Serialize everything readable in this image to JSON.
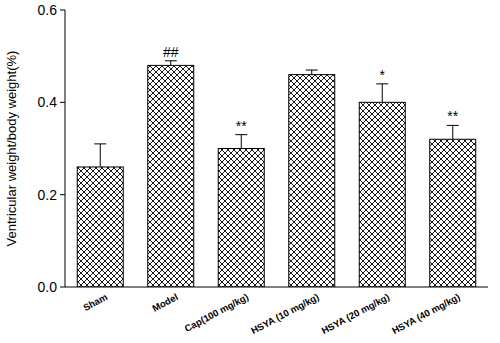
{
  "chart_data": {
    "type": "bar",
    "y_label": "Ventricular weight/body weight(%)",
    "categories": [
      "Sham",
      "Model",
      "Cap(100 mg/kg)",
      "HSYA (10 mg/kg)",
      "HSYA (20 mg/kg)",
      "HSYA (40 mg/kg)"
    ],
    "values": [
      0.26,
      0.48,
      0.3,
      0.46,
      0.4,
      0.32
    ],
    "errors": [
      0.05,
      0.01,
      0.03,
      0.01,
      0.04,
      0.03
    ],
    "annotations": [
      null,
      "##",
      "**",
      null,
      "*",
      "**"
    ],
    "color": "#000000",
    "ylim": [
      0,
      0.6
    ],
    "yticks": [
      {
        "value": 0,
        "label": "0.0"
      },
      0.2,
      0.4,
      0.6
    ],
    "grid": false
  }
}
